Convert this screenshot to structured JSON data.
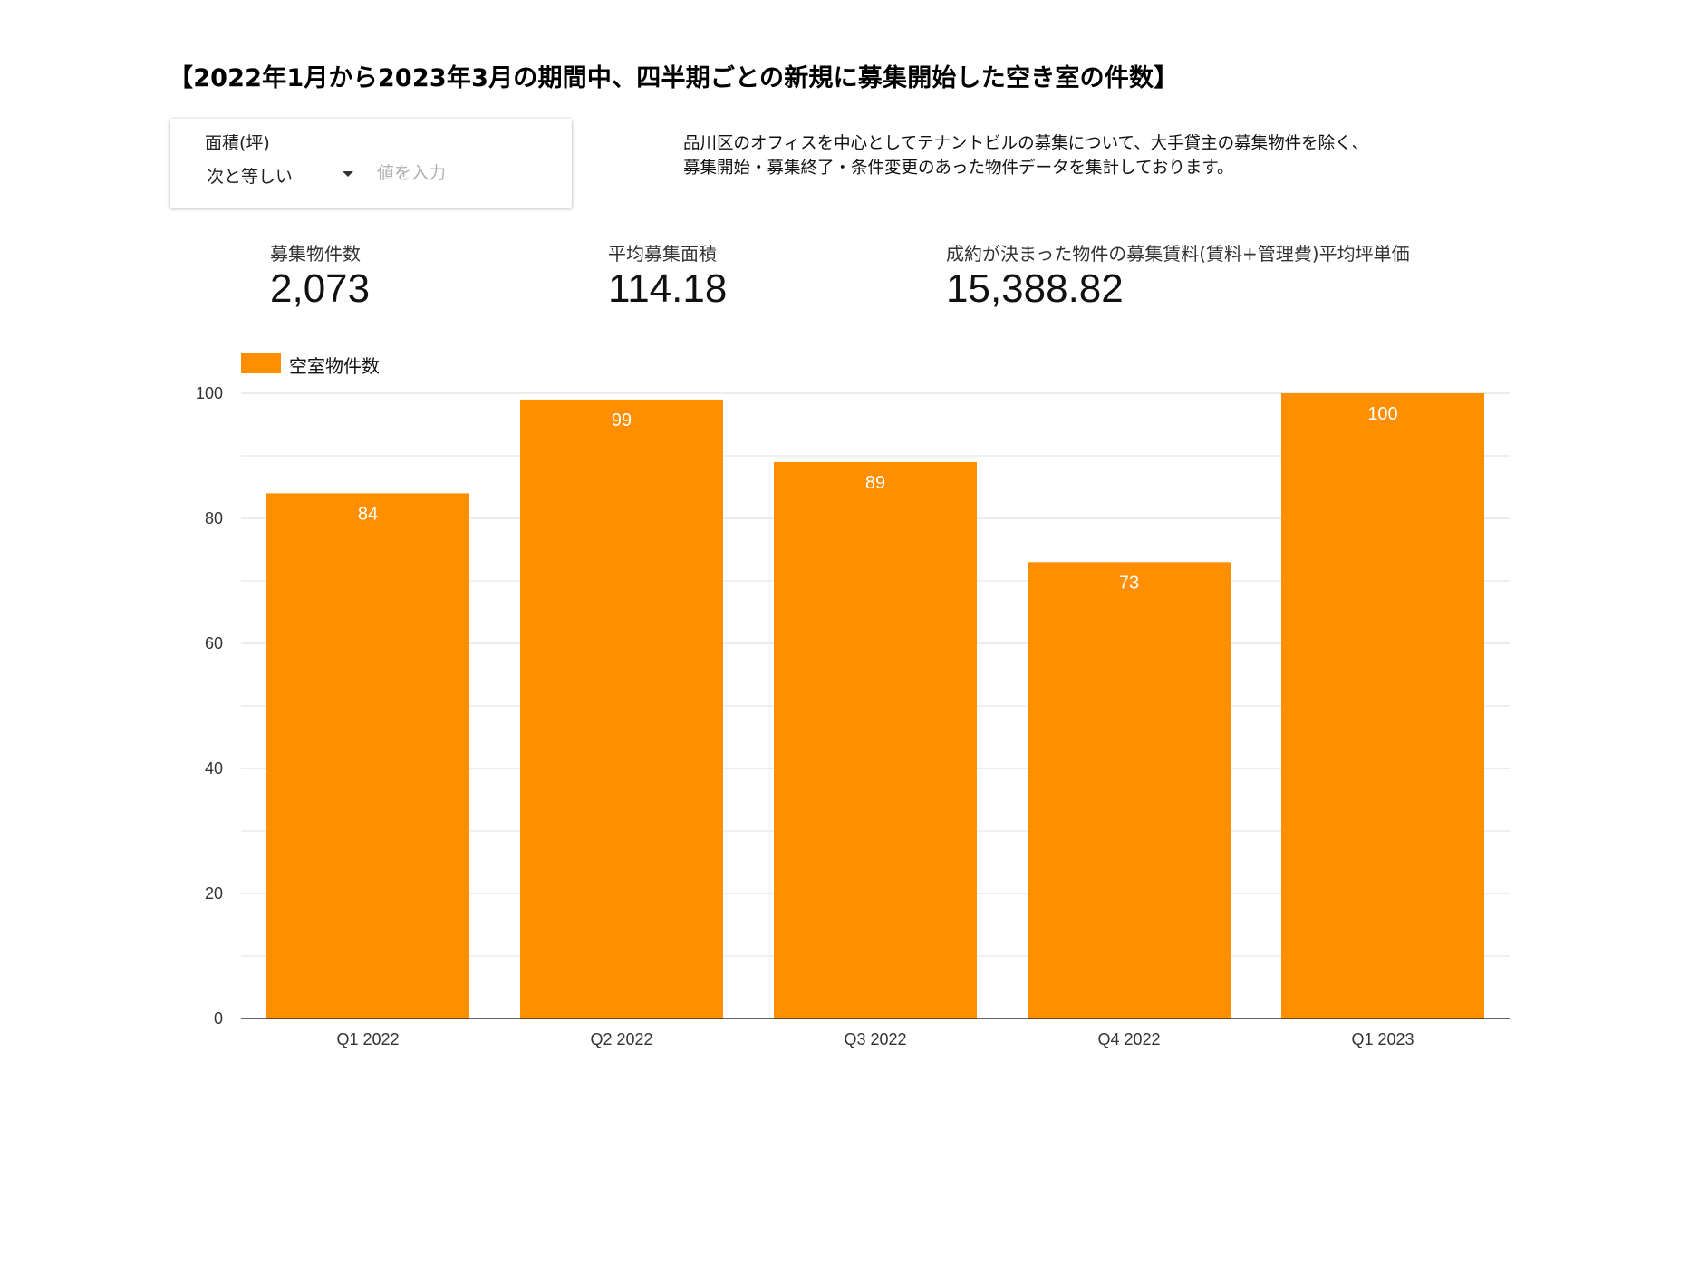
{
  "page": {
    "title": "【2022年1月から2023年3月の期間中、四半期ごとの新規に募集開始した空き室の件数】",
    "description_line1": "品川区のオフィスを中心としてテナントビルの募集について、大手貸主の募集物件を除く、",
    "description_line2": "募集開始・募集終了・条件変更のあった物件データを集計しております。"
  },
  "filter": {
    "label": "面積(坪)",
    "operator": "次と等しい",
    "value_placeholder": "値を入力",
    "value": ""
  },
  "kpis": [
    {
      "label": "募集物件数",
      "value": "2,073"
    },
    {
      "label": "平均募集面積",
      "value": "114.18"
    },
    {
      "label": "成約が決まった物件の募集賃料(賃料+管理費)平均坪単価",
      "value": "15,388.82"
    }
  ],
  "colors": {
    "bar": "#ff8f00",
    "grid": "#e0e0e0",
    "axis": "#333333",
    "bar_label": "#ffffff"
  },
  "chart_data": {
    "type": "bar",
    "categories": [
      "Q1 2022",
      "Q2 2022",
      "Q3 2022",
      "Q4 2022",
      "Q1 2023"
    ],
    "series": [
      {
        "name": "空室物件数",
        "values": [
          84,
          99,
          89,
          73,
          100
        ]
      }
    ],
    "ylim": [
      0,
      100
    ],
    "yticks": [
      0,
      20,
      40,
      60,
      80,
      100
    ],
    "grid": true,
    "legend": "top-left",
    "data_labels": true,
    "xlabel": "",
    "ylabel": ""
  }
}
